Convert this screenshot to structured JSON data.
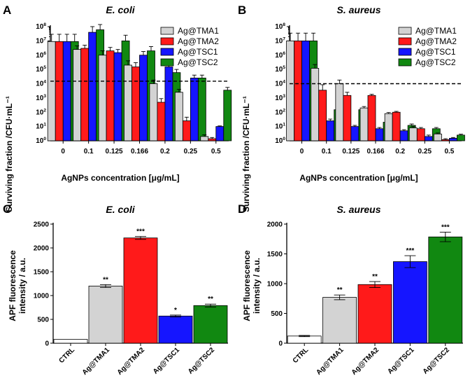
{
  "colors": {
    "ag_tma1": "#d3d3d3",
    "ag_tma2": "#ff1a1a",
    "ag_tsc1": "#1515ff",
    "ag_tsc2": "#118811",
    "ctrl": "#ffffff"
  },
  "chart_data": [
    {
      "id": "A",
      "panel_label": "A",
      "type": "bar",
      "scale": "log",
      "title": "E. coli",
      "xlabel": "AgNPs concentration [μg/mL]",
      "ylabel": "Surviving fraction /CFU·mL⁻¹",
      "ylim_exponents": [
        0,
        8
      ],
      "threshold": 15000,
      "categories": [
        "0",
        "0.1",
        "0.125",
        "0.166",
        "0.2",
        "0.25",
        "0.5"
      ],
      "series": [
        {
          "name": "Ag@TMA1",
          "color": "#d3d3d3",
          "values": [
            9000000,
            2500000,
            1000000,
            200000,
            10000,
            2500,
            2
          ],
          "errors": [
            20000000,
            2000000,
            1000000,
            200000,
            8000,
            1500,
            0.6
          ]
        },
        {
          "name": "Ag@TMA2",
          "color": "#ff1a1a",
          "values": [
            9000000,
            3000000,
            2000000,
            150000,
            500,
            25,
            1.4
          ],
          "errors": [
            20000000,
            2000000,
            1500000,
            150000,
            400,
            20,
            0.3
          ]
        },
        {
          "name": "Ag@TSC1",
          "color": "#1515ff",
          "values": [
            9000000,
            40000000,
            1500000,
            1000000,
            150000,
            25000,
            10
          ],
          "errors": [
            20000000,
            60000000,
            1000000,
            800000,
            80000,
            15000,
            1
          ]
        },
        {
          "name": "Ag@TSC2",
          "color": "#118811",
          "values": [
            9000000,
            60000000,
            10000000,
            2000000,
            60000,
            25000,
            3500
          ],
          "errors": [
            20000000,
            80000000,
            15000000,
            2000000,
            40000,
            15000,
            2000
          ]
        }
      ],
      "legend": [
        "Ag@TMA1",
        "Ag@TMA2",
        "Ag@TSC1",
        "Ag@TSC2"
      ]
    },
    {
      "id": "B",
      "panel_label": "B",
      "type": "bar",
      "scale": "log",
      "title": "S. aureus",
      "xlabel": "AgNPs concentration [μg/mL]",
      "ylabel": "Surviving fraction /CFU·mL⁻¹",
      "ylim_exponents": [
        0,
        8
      ],
      "threshold": 10000,
      "categories": [
        "0",
        "0.1",
        "0.125",
        "0.166",
        "0.2",
        "0.25",
        "0.5"
      ],
      "series": [
        {
          "name": "Ag@TMA1",
          "color": "#d3d3d3",
          "values": [
            10000000,
            120000,
            10000,
            200,
            80,
            8,
            3
          ],
          "errors": [
            25000000,
            100000,
            8000,
            50,
            15,
            2,
            0.5
          ]
        },
        {
          "name": "Ag@TMA2",
          "color": "#ff1a1a",
          "values": [
            10000000,
            3500,
            1500,
            1500,
            100,
            7,
            1.2
          ],
          "errors": [
            25000000,
            5000,
            1000,
            300,
            15,
            1.5,
            0.2
          ]
        },
        {
          "name": "Ag@TSC1",
          "color": "#1515ff",
          "values": [
            10000000,
            25,
            10,
            7,
            5,
            2,
            1.5
          ],
          "errors": [
            25000000,
            8,
            2,
            1.5,
            1,
            0.5,
            0.2
          ]
        },
        {
          "name": "Ag@TSC2",
          "color": "#118811",
          "values": [
            10000000,
            150,
            150,
            20,
            12,
            7,
            2.5
          ],
          "errors": [
            25000000,
            50,
            40,
            5,
            3,
            1.5,
            0.4
          ]
        }
      ],
      "legend": [
        "Ag@TMA1",
        "Ag@TMA2",
        "Ag@TSC1",
        "Ag@TSC2"
      ]
    },
    {
      "id": "C",
      "panel_label": "C",
      "type": "bar",
      "scale": "linear",
      "title": "E. coli",
      "ylabel": [
        "APF fluorescence",
        "intensity / a.u."
      ],
      "ylim": [
        0,
        2500
      ],
      "yticks": [
        "0",
        "500",
        "1000",
        "1500",
        "2000",
        "2500"
      ],
      "categories": [
        "CTRL",
        "Ag@TMA1",
        "Ag@TMA2",
        "Ag@TSC1",
        "Ag@TSC2"
      ],
      "values": [
        80,
        1200,
        2210,
        570,
        790
      ],
      "errors": [
        0,
        30,
        30,
        20,
        30
      ],
      "colors": [
        "#ffffff",
        "#d3d3d3",
        "#ff1a1a",
        "#1515ff",
        "#118811"
      ],
      "significance": [
        "",
        "**",
        "***",
        "*",
        "**"
      ]
    },
    {
      "id": "D",
      "panel_label": "D",
      "type": "bar",
      "scale": "linear",
      "title": "S. aureus",
      "ylabel": [
        "APF fluorescence",
        "intensity / a.u."
      ],
      "ylim": [
        0,
        2000
      ],
      "yticks": [
        "0",
        "500",
        "1000",
        "1500",
        "2000"
      ],
      "categories": [
        "CTRL",
        "Ag@TMA1",
        "Ag@TMA2",
        "Ag@TSC1",
        "Ag@TSC2"
      ],
      "values": [
        120,
        770,
        985,
        1370,
        1785
      ],
      "errors": [
        10,
        40,
        50,
        100,
        80
      ],
      "colors": [
        "#ffffff",
        "#d3d3d3",
        "#ff1a1a",
        "#1515ff",
        "#118811"
      ],
      "significance": [
        "",
        "**",
        "**",
        "***",
        "***"
      ]
    }
  ]
}
